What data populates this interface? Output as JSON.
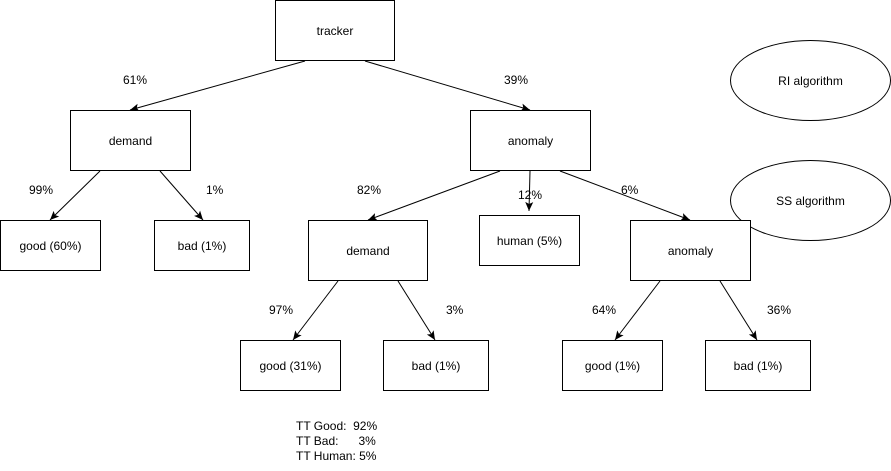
{
  "nodes": {
    "root": "tracker",
    "l1_left": "demand",
    "l1_right": "anomaly",
    "l2_good": "good (60%)",
    "l2_bad": "bad (1%)",
    "l2_demand": "demand",
    "l2_human": "human (5%)",
    "l2_anomaly": "anomaly",
    "l3_good_a": "good (31%)",
    "l3_bad_a": "bad (1%)",
    "l3_good_b": "good (1%)",
    "l3_bad_b": "bad (1%)"
  },
  "edge_labels": {
    "root_left": "61%",
    "root_right": "39%",
    "left_good": "99%",
    "left_bad": "1%",
    "right_demand": "82%",
    "right_human": "12%",
    "right_anomaly": "6%",
    "demand_good": "97%",
    "demand_bad": "3%",
    "anomaly_good": "64%",
    "anomaly_bad": "36%"
  },
  "legend": {
    "ri": "RI algorithm",
    "ss": "SS algorithm"
  },
  "summary": {
    "good": "TT Good:  92%",
    "bad": "TT Bad:      3%",
    "human": "TT Human: 5%"
  }
}
